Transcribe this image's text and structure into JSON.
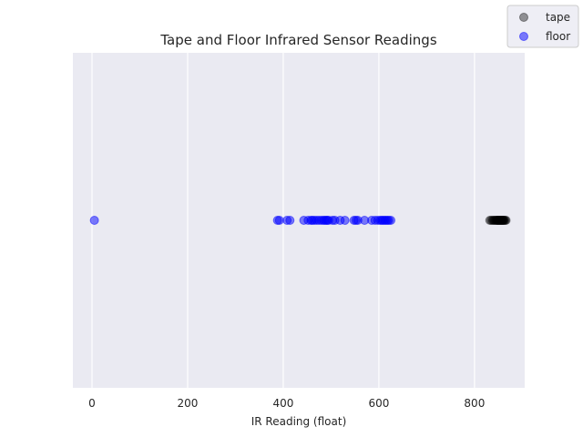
{
  "chart_data": {
    "type": "scatter",
    "title": "Tape and Floor Infrared Sensor Readings",
    "xlabel": "IR Reading (float)",
    "ylabel": "",
    "xlim": [
      -40,
      905
    ],
    "xticks": [
      0,
      200,
      400,
      600,
      800
    ],
    "yticks": [],
    "grid": true,
    "legend_position": "top-right (outside plot)",
    "colors": {
      "background": "#eaeaf2",
      "grid": "#ffffff",
      "tape": "#000000",
      "floor": "#0000ff"
    },
    "series": [
      {
        "name": "tape",
        "color": "#000000",
        "alpha": 0.4,
        "x": [
          832,
          835,
          838,
          840,
          842,
          844,
          846,
          847,
          848,
          849,
          850,
          851,
          852,
          853,
          854,
          855,
          856,
          857,
          858,
          859,
          860,
          861,
          862,
          864,
          866
        ],
        "y": [
          0,
          0,
          0,
          0,
          0,
          0,
          0,
          0,
          0,
          0,
          0,
          0,
          0,
          0,
          0,
          0,
          0,
          0,
          0,
          0,
          0,
          0,
          0,
          0,
          0
        ]
      },
      {
        "name": "floor",
        "color": "#0000ff",
        "alpha": 0.5,
        "x": [
          5,
          388,
          392,
          408,
          414,
          443,
          452,
          458,
          461,
          465,
          470,
          475,
          480,
          484,
          487,
          490,
          492,
          495,
          503,
          508,
          519,
          529,
          548,
          552,
          556,
          570,
          585,
          592,
          598,
          603,
          606,
          609,
          612,
          615,
          618,
          621,
          625
        ],
        "y": [
          0,
          0,
          0,
          0,
          0,
          0,
          0,
          0,
          0,
          0,
          0,
          0,
          0,
          0,
          0,
          0,
          0,
          0,
          0,
          0,
          0,
          0,
          0,
          0,
          0,
          0,
          0,
          0,
          0,
          0,
          0,
          0,
          0,
          0,
          0,
          0,
          0
        ]
      }
    ]
  }
}
